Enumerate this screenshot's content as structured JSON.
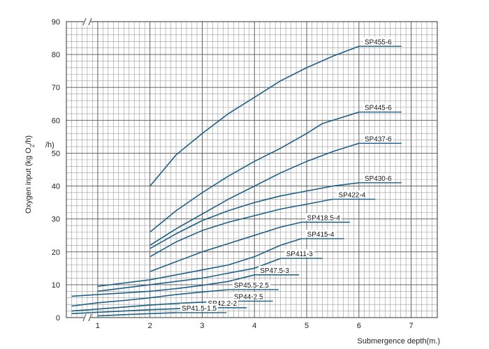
{
  "chart_data": {
    "type": "line",
    "title": "",
    "xlabel": "Submergence depth(m.)",
    "ylabel_prefix": "Oxygen  input (kg O",
    "ylabel_sub": "2",
    "ylabel_suffix": "/h)",
    "ylabel_fragment": "/h)",
    "xlim": [
      0.4,
      7.5
    ],
    "ylim": [
      0,
      90
    ],
    "x_ticks": [
      "1",
      "2",
      "3",
      "4",
      "5",
      "6",
      "7"
    ],
    "y_ticks": [
      "0",
      "10",
      "20",
      "30",
      "40",
      "50",
      "60",
      "70",
      "80",
      "90"
    ],
    "grid": true,
    "series": [
      {
        "name": "SP455-6",
        "label_pos": [
          6.0,
          82.5
        ],
        "points": [
          [
            2.0,
            40.0
          ],
          [
            2.5,
            49.5
          ],
          [
            3.0,
            56.0
          ],
          [
            3.5,
            62.0
          ],
          [
            4.0,
            67.0
          ],
          [
            4.5,
            72.0
          ],
          [
            5.0,
            76.0
          ],
          [
            5.5,
            79.5
          ],
          [
            6.0,
            82.5
          ]
        ]
      },
      {
        "name": "SP445-6",
        "label_pos": [
          6.0,
          62.5
        ],
        "points": [
          [
            2.0,
            26.0
          ],
          [
            2.5,
            32.5
          ],
          [
            3.0,
            38.0
          ],
          [
            3.5,
            43.0
          ],
          [
            4.0,
            47.5
          ],
          [
            4.5,
            51.5
          ],
          [
            5.0,
            56.0
          ],
          [
            5.3,
            59.0
          ],
          [
            5.6,
            60.5
          ],
          [
            6.0,
            62.5
          ]
        ]
      },
      {
        "name": "SP437-6",
        "label_pos": [
          6.0,
          53.0
        ],
        "points": [
          [
            2.0,
            22.0
          ],
          [
            2.5,
            27.0
          ],
          [
            3.0,
            31.5
          ],
          [
            3.5,
            36.0
          ],
          [
            4.0,
            40.0
          ],
          [
            4.5,
            44.0
          ],
          [
            5.0,
            47.5
          ],
          [
            5.5,
            50.5
          ],
          [
            6.0,
            53.0
          ]
        ]
      },
      {
        "name": "SP430-6",
        "label_pos": [
          6.0,
          41.0
        ],
        "points": [
          [
            2.0,
            21.0
          ],
          [
            2.5,
            25.5
          ],
          [
            3.0,
            29.5
          ],
          [
            3.5,
            32.5
          ],
          [
            4.0,
            35.0
          ],
          [
            4.5,
            37.0
          ],
          [
            5.0,
            38.5
          ],
          [
            5.5,
            40.0
          ],
          [
            6.0,
            41.0
          ]
        ]
      },
      {
        "name": "SP422-4",
        "label_pos": [
          5.5,
          36.0
        ],
        "points": [
          [
            2.0,
            18.5
          ],
          [
            2.5,
            23.0
          ],
          [
            3.0,
            26.5
          ],
          [
            3.5,
            29.0
          ],
          [
            4.0,
            31.0
          ],
          [
            4.5,
            33.0
          ],
          [
            5.0,
            34.5
          ],
          [
            5.5,
            36.0
          ]
        ]
      },
      {
        "name": "SP418.5-4",
        "label_pos": [
          4.9,
          29.0
        ],
        "points": [
          [
            2.0,
            14.0
          ],
          [
            2.5,
            17.0
          ],
          [
            3.0,
            20.0
          ],
          [
            3.5,
            22.5
          ],
          [
            4.0,
            25.0
          ],
          [
            4.5,
            27.5
          ],
          [
            4.9,
            29.0
          ]
        ]
      },
      {
        "name": "SP415-4",
        "label_pos": [
          4.9,
          24.0
        ],
        "points": [
          [
            1.0,
            9.5
          ],
          [
            1.5,
            10.5
          ],
          [
            2.0,
            11.5
          ],
          [
            2.5,
            13.0
          ],
          [
            3.0,
            14.5
          ],
          [
            3.5,
            16.0
          ],
          [
            4.0,
            18.5
          ],
          [
            4.5,
            22.0
          ],
          [
            4.9,
            24.0
          ]
        ]
      },
      {
        "name": "SP411-3",
        "label_pos": [
          4.5,
          18.0
        ],
        "points": [
          [
            1.0,
            8.0
          ],
          [
            1.5,
            9.0
          ],
          [
            2.0,
            10.0
          ],
          [
            2.5,
            11.0
          ],
          [
            3.0,
            12.0
          ],
          [
            3.5,
            13.5
          ],
          [
            4.0,
            15.0
          ],
          [
            4.5,
            18.0
          ]
        ]
      },
      {
        "name": "SP47.5-3",
        "label_pos": [
          4.0,
          13.0
        ],
        "points": [
          [
            0.5,
            6.5
          ],
          [
            1.0,
            7.0
          ],
          [
            1.5,
            7.5
          ],
          [
            2.0,
            8.0
          ],
          [
            2.5,
            8.8
          ],
          [
            3.0,
            9.8
          ],
          [
            3.5,
            11.0
          ],
          [
            4.0,
            13.0
          ]
        ]
      },
      {
        "name": "SP45.5-2.5",
        "label_pos": [
          3.5,
          8.5
        ],
        "points": [
          [
            0.5,
            3.5
          ],
          [
            1.0,
            4.5
          ],
          [
            1.5,
            5.2
          ],
          [
            2.0,
            6.0
          ],
          [
            2.5,
            7.0
          ],
          [
            3.0,
            7.8
          ],
          [
            3.5,
            8.5
          ]
        ]
      },
      {
        "name": "SP44-2.5",
        "label_pos": [
          3.5,
          5.0
        ],
        "points": [
          [
            0.5,
            2.0
          ],
          [
            1.0,
            2.6
          ],
          [
            1.5,
            3.2
          ],
          [
            2.0,
            3.8
          ],
          [
            2.5,
            4.3
          ],
          [
            3.0,
            4.7
          ],
          [
            3.5,
            5.0
          ]
        ]
      },
      {
        "name": "SP42.2-2",
        "label_pos": [
          3.0,
          3.0
        ],
        "points": [
          [
            0.5,
            1.2
          ],
          [
            1.0,
            1.6
          ],
          [
            1.5,
            2.0
          ],
          [
            2.0,
            2.4
          ],
          [
            2.5,
            2.7
          ],
          [
            3.0,
            3.0
          ]
        ]
      },
      {
        "name": "SP41.5-1.5",
        "label_pos": [
          2.5,
          1.5
        ],
        "points": [
          [
            1.0,
            0.5
          ],
          [
            1.5,
            0.9
          ],
          [
            2.0,
            1.2
          ],
          [
            2.5,
            1.5
          ]
        ]
      }
    ]
  }
}
